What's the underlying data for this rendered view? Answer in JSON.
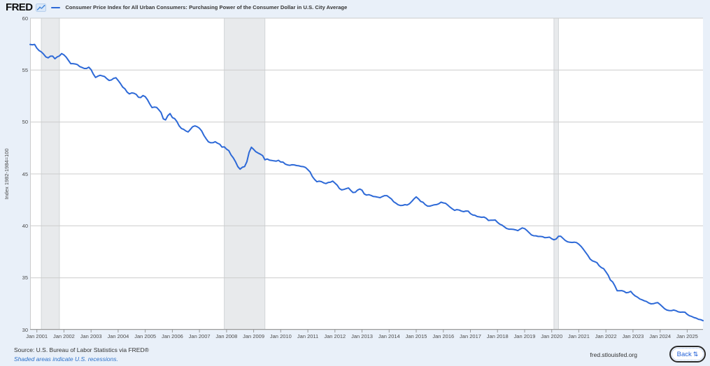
{
  "header": {
    "logo_text": "FRED"
  },
  "chart_data": {
    "type": "line",
    "title": "Consumer Price Index for All Urban Consumers: Purchasing Power of the Consumer Dollar in U.S. City Average",
    "ylabel": "Index 1982-1984=100",
    "ylim": [
      30,
      60
    ],
    "y_ticks": [
      60,
      55,
      50,
      45,
      40,
      35,
      30
    ],
    "x_tick_labels": [
      "Jan 2001",
      "Jan 2002",
      "Jan 2003",
      "Jan 2004",
      "Jan 2005",
      "Jan 2006",
      "Jan 2007",
      "Jan 2008",
      "Jan 2009",
      "Jan 2010",
      "Jan 2011",
      "Jan 2012",
      "Jan 2013",
      "Jan 2014",
      "Jan 2015",
      "Jan 2016",
      "Jan 2017",
      "Jan 2018",
      "Jan 2019",
      "Jan 2020",
      "Jan 2021",
      "Jan 2022",
      "Jan 2023",
      "Jan 2024",
      "Jan 2025"
    ],
    "grid": true,
    "legend_position": "top",
    "line_color": "#2d69d7",
    "gridline_color": "#cccccc",
    "axis_line_color": "#999999",
    "recession_fill_color": "#e8eaec",
    "recession_edge_color": "#d2d5d8",
    "recessions": [
      {
        "start": "2001-03",
        "end": "2001-11"
      },
      {
        "start": "2007-12",
        "end": "2009-06"
      },
      {
        "start": "2020-02",
        "end": "2020-04"
      }
    ],
    "series": [
      {
        "name": "Consumer Price Index for All Urban Consumers: Purchasing Power of the Consumer Dollar in U.S. City Average",
        "start": "2000-10",
        "frequency": "monthly",
        "values": [
          57.47,
          57.44,
          57.47,
          57.11,
          56.88,
          56.75,
          56.53,
          56.27,
          56.18,
          56.34,
          56.34,
          56.09,
          56.27,
          56.37,
          56.59,
          56.46,
          56.24,
          55.93,
          55.62,
          55.62,
          55.59,
          55.52,
          55.34,
          55.25,
          55.16,
          55.16,
          55.28,
          55.04,
          54.61,
          54.29,
          54.41,
          54.5,
          54.44,
          54.38,
          54.17,
          54.0,
          54.05,
          54.2,
          54.26,
          54.0,
          53.71,
          53.36,
          53.19,
          52.88,
          52.71,
          52.8,
          52.77,
          52.66,
          52.38,
          52.36,
          52.55,
          52.44,
          52.14,
          51.73,
          51.39,
          51.44,
          51.41,
          51.18,
          50.92,
          50.3,
          50.2,
          50.61,
          50.81,
          50.43,
          50.33,
          50.05,
          49.63,
          49.38,
          49.29,
          49.14,
          49.04,
          49.29,
          49.55,
          49.63,
          49.55,
          49.4,
          49.14,
          48.7,
          48.38,
          48.09,
          48.0,
          48.01,
          48.1,
          47.96,
          47.86,
          47.58,
          47.61,
          47.38,
          47.24,
          46.83,
          46.55,
          46.16,
          45.7,
          45.46,
          45.64,
          45.71,
          46.17,
          47.08,
          47.57,
          47.36,
          47.13,
          47.01,
          46.9,
          46.76,
          46.36,
          46.44,
          46.33,
          46.3,
          46.26,
          46.23,
          46.31,
          46.15,
          46.14,
          45.95,
          45.87,
          45.83,
          45.88,
          45.87,
          45.81,
          45.78,
          45.72,
          45.7,
          45.62,
          45.41,
          45.19,
          44.75,
          44.46,
          44.25,
          44.3,
          44.26,
          44.14,
          44.07,
          44.17,
          44.2,
          44.31,
          44.12,
          43.92,
          43.59,
          43.46,
          43.51,
          43.58,
          43.65,
          43.41,
          43.21,
          43.23,
          43.44,
          43.55,
          43.43,
          43.07,
          42.96,
          43.0,
          42.93,
          42.83,
          42.81,
          42.76,
          42.71,
          42.82,
          42.91,
          42.91,
          42.75,
          42.59,
          42.32,
          42.18,
          42.03,
          41.96,
          41.97,
          42.04,
          42.01,
          42.12,
          42.35,
          42.59,
          42.79,
          42.6,
          42.35,
          42.27,
          42.05,
          41.9,
          41.9,
          41.96,
          42.03,
          42.05,
          42.13,
          42.28,
          42.21,
          42.17,
          41.99,
          41.8,
          41.63,
          41.49,
          41.56,
          41.52,
          41.42,
          41.37,
          41.43,
          41.42,
          41.18,
          41.05,
          41.02,
          40.9,
          40.86,
          40.82,
          40.85,
          40.73,
          40.52,
          40.54,
          40.54,
          40.56,
          40.34,
          40.16,
          40.07,
          39.91,
          39.75,
          39.68,
          39.68,
          39.66,
          39.61,
          39.54,
          39.68,
          39.8,
          39.73,
          39.56,
          39.34,
          39.13,
          39.05,
          39.04,
          38.98,
          38.98,
          38.95,
          38.86,
          38.88,
          38.91,
          38.76,
          38.66,
          38.74,
          39.0,
          39.0,
          38.79,
          38.59,
          38.47,
          38.42,
          38.4,
          38.43,
          38.39,
          38.23,
          38.02,
          37.75,
          37.45,
          37.15,
          36.81,
          36.63,
          36.55,
          36.46,
          36.16,
          35.98,
          35.87,
          35.57,
          35.25,
          34.78,
          34.59,
          34.21,
          33.75,
          33.75,
          33.76,
          33.69,
          33.56,
          33.59,
          33.69,
          33.43,
          33.24,
          33.13,
          32.96,
          32.88,
          32.78,
          32.71,
          32.57,
          32.49,
          32.5,
          32.57,
          32.6,
          32.42,
          32.22,
          32.02,
          31.89,
          31.84,
          31.83,
          31.89,
          31.83,
          31.72,
          31.68,
          31.7,
          31.68,
          31.48,
          31.34,
          31.27,
          31.17,
          31.11,
          31.0,
          30.96,
          30.87
        ]
      }
    ]
  },
  "footer": {
    "source": "Source: U.S. Bureau of Labor Statistics via FRED®",
    "recession_note": "Shaded areas indicate U.S. recessions.",
    "site": "fred.stlouisfed.org",
    "back_button_label": "Back",
    "back_button_icon": "⇅"
  }
}
